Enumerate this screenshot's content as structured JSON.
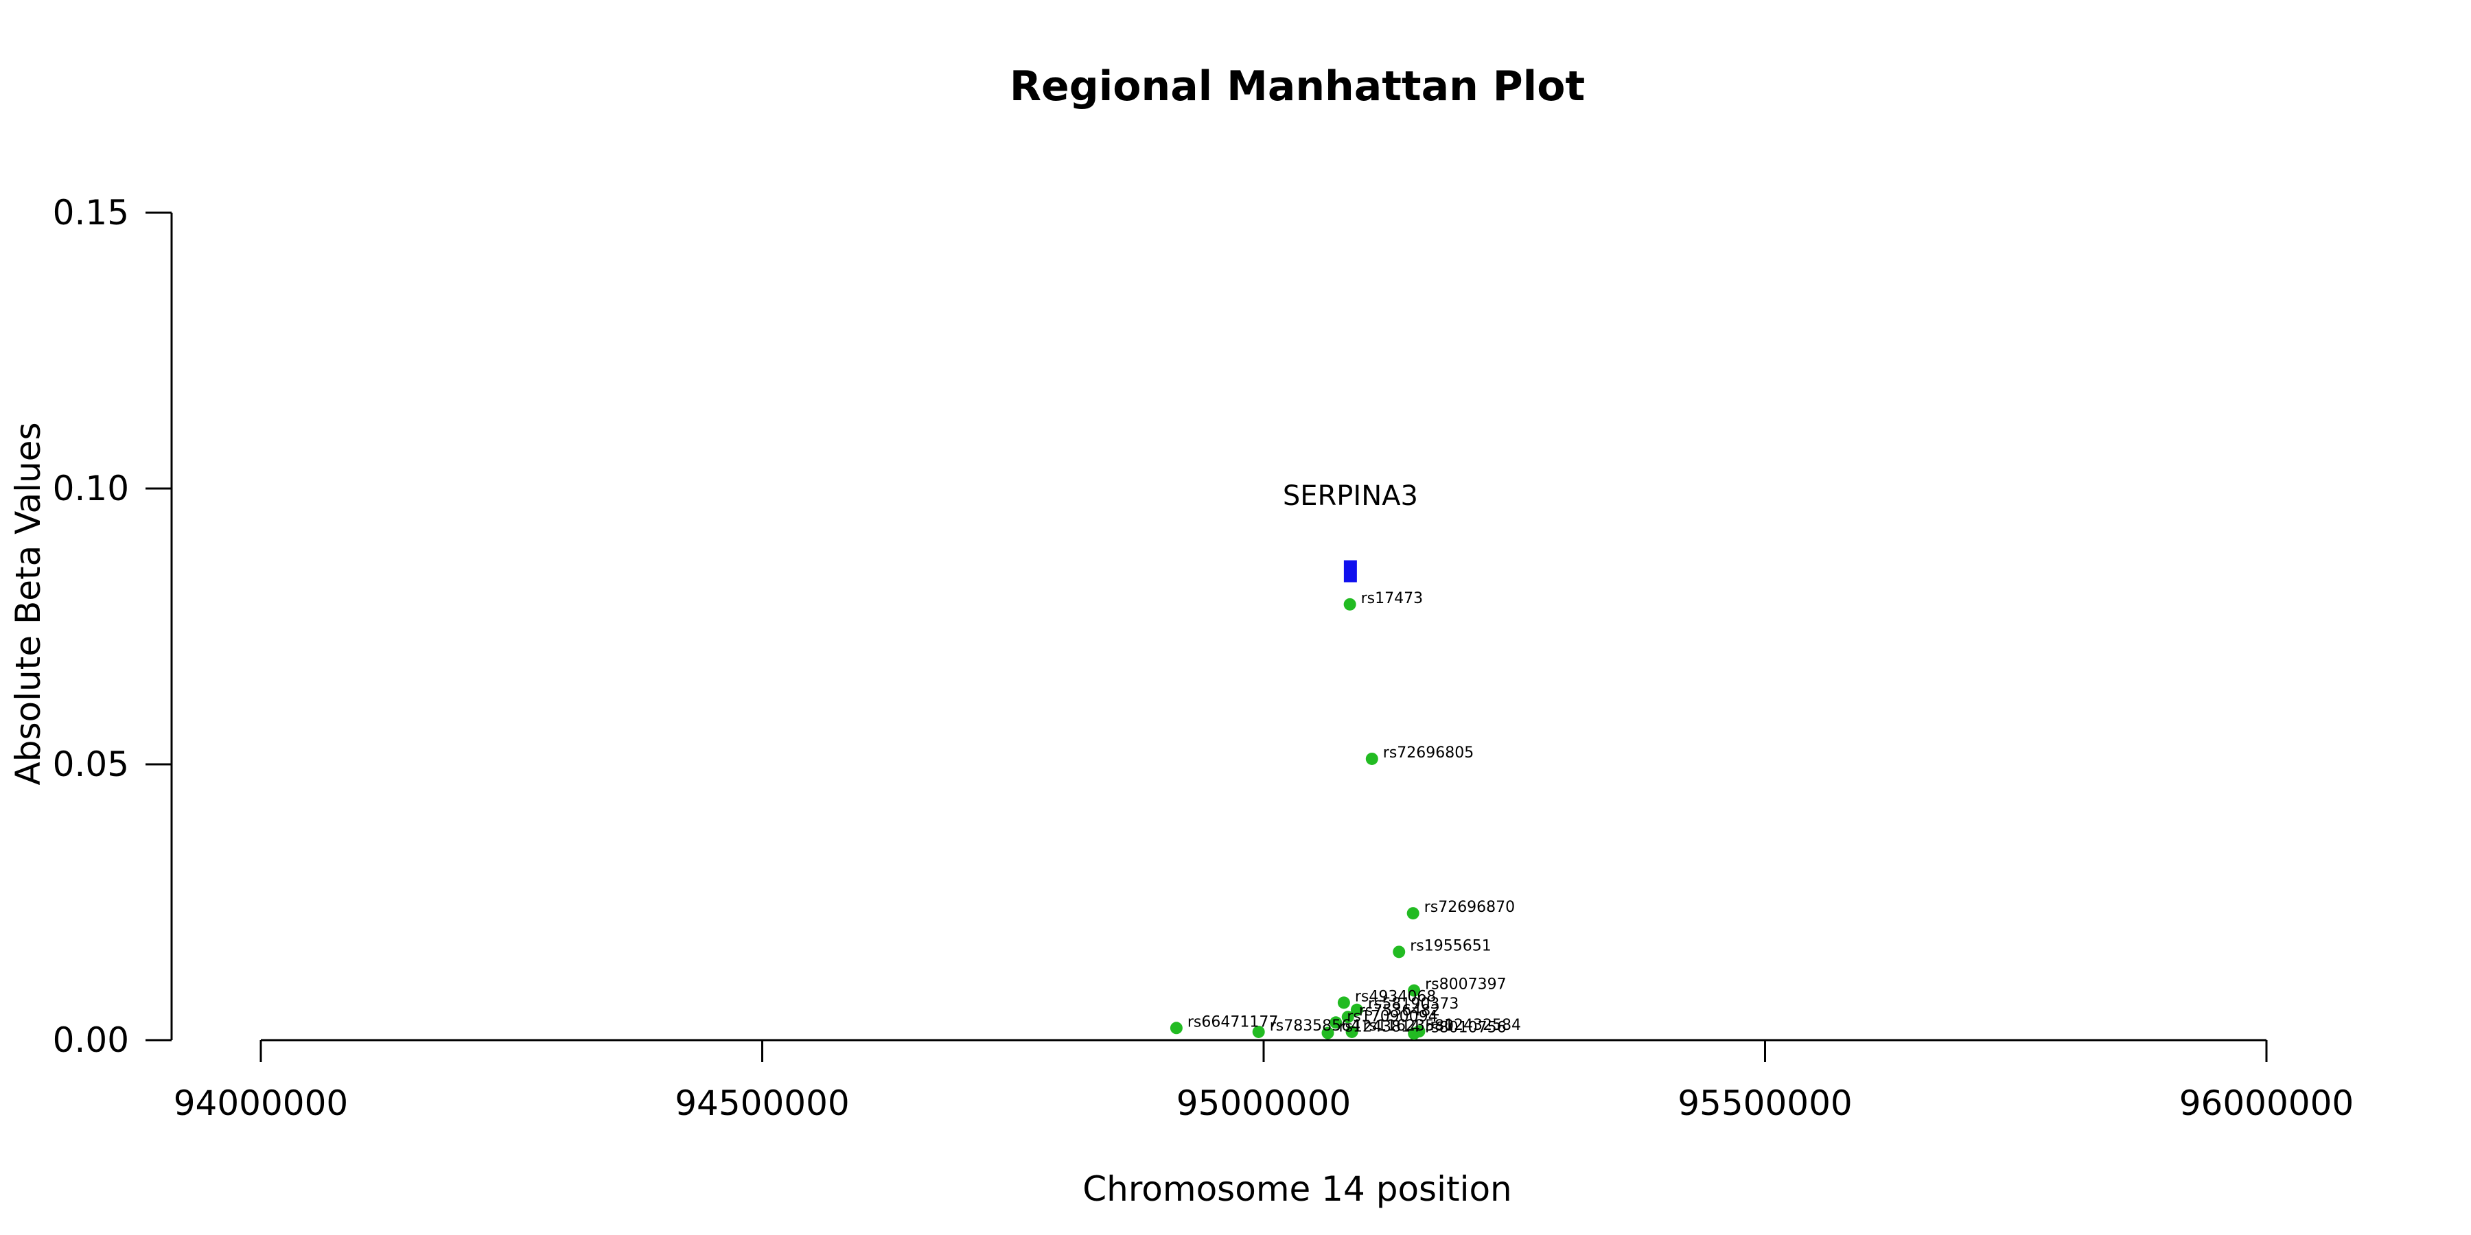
{
  "chart_data": {
    "type": "scatter",
    "title": "Regional Manhattan Plot",
    "xlabel": "Chromosome 14 position",
    "ylabel": "Absolute Beta Values",
    "xlim": [
      94000000,
      96000000
    ],
    "ylim": [
      0,
      0.15
    ],
    "x_ticks": [
      94000000,
      94500000,
      95000000,
      95500000,
      96000000
    ],
    "y_ticks": [
      0.0,
      0.05,
      0.1,
      0.15
    ],
    "x_tick_labels": [
      "94000000",
      "94500000",
      "95000000",
      "95500000",
      "96000000"
    ],
    "y_tick_labels": [
      "0.00",
      "0.05",
      "0.10",
      "0.15"
    ],
    "grid": false,
    "point_color": "#22bb22",
    "gene_color": "#1010ee",
    "gene": {
      "name": "SERPINA3",
      "start": 95080000,
      "end": 95093000,
      "y": 0.085
    },
    "points": [
      {
        "label": "rs17473",
        "x": 95086000,
        "y": 0.079
      },
      {
        "label": "rs72696805",
        "x": 95108000,
        "y": 0.051
      },
      {
        "label": "rs72696870",
        "x": 95149000,
        "y": 0.023
      },
      {
        "label": "rs1955651",
        "x": 95135000,
        "y": 0.016
      },
      {
        "label": "rs8007397",
        "x": 95150000,
        "y": 0.009
      },
      {
        "label": "rs4934068",
        "x": 95080000,
        "y": 0.0068
      },
      {
        "label": "rs58190373",
        "x": 95093000,
        "y": 0.0055
      },
      {
        "label": "rs7536482",
        "x": 95084000,
        "y": 0.0042
      },
      {
        "label": "rs17090094",
        "x": 95072000,
        "y": 0.0032
      },
      {
        "label": "rs66471177",
        "x": 94913000,
        "y": 0.0022
      },
      {
        "label": "rs78358564",
        "x": 94995000,
        "y": 0.0015
      },
      {
        "label": "rs1243814",
        "x": 95064000,
        "y": 0.0013
      },
      {
        "label": "rs11623580",
        "x": 95088000,
        "y": 0.0015
      },
      {
        "label": "rs12432584",
        "x": 95155000,
        "y": 0.0016
      },
      {
        "label": "rs8010756",
        "x": 95150000,
        "y": 0.0012
      }
    ]
  }
}
